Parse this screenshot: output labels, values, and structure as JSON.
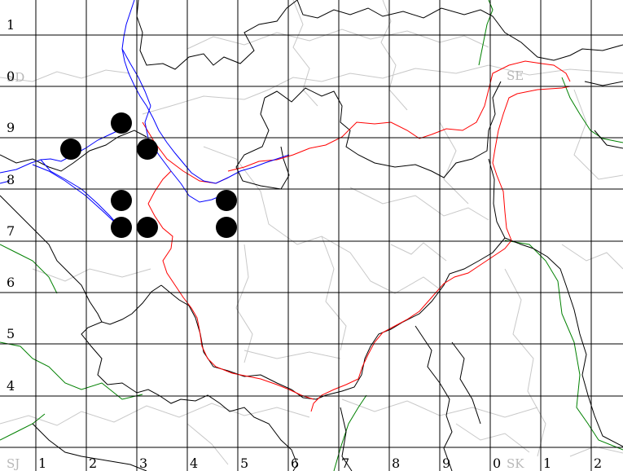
{
  "map": {
    "grid_row_labels": [
      "1",
      "0",
      "9",
      "8",
      "7",
      "6",
      "5",
      "4"
    ],
    "grid_col_labels": [
      "1",
      "2",
      "3",
      "4",
      "5",
      "6",
      "7",
      "8",
      "9",
      "0",
      "1",
      "2"
    ],
    "square_labels": [
      "SD",
      "SE",
      "SJ",
      "SK"
    ],
    "record_count": 8,
    "colors": {
      "grid": "#000000",
      "record_dot": "#000000",
      "county_boundary": "#000000",
      "region_boundary": "#ff0000",
      "river": "#0000ff",
      "national_boundary": "#008000",
      "minor_boundary": "#c8c8c8",
      "square_label": "#b8b8b8"
    }
  }
}
